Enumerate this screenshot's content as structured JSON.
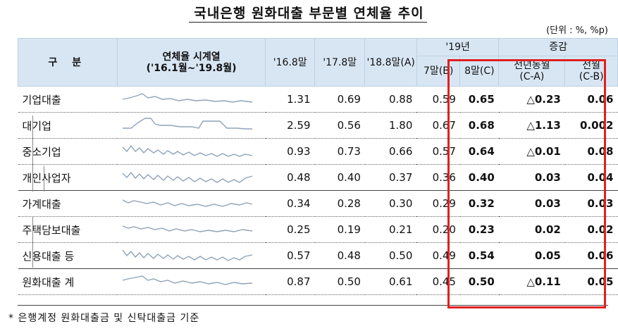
{
  "title": "국내은행 원화대출 부문별 연체율 추이",
  "unit": "(단위 : %, %p)",
  "headers": {
    "category": "구 분",
    "sparkline_line1": "연체율 시계열",
    "sparkline_line2": "('16.1월~'19.8월)",
    "y16": "'16.8말",
    "y17": "'17.8말",
    "y18": "'18.8말(A)",
    "y19": "'19년",
    "jul": "7말(B)",
    "aug": "8말(C)",
    "change": "증감",
    "yoy_line1": "전년동월",
    "yoy_line2": "(C-A)",
    "mom_line1": "전월",
    "mom_line2": "(C-B)"
  },
  "rows": [
    {
      "label": "기업대출",
      "y16": "1.31",
      "y17": "0.69",
      "y18": "0.88",
      "jul": "0.59",
      "aug": "0.65",
      "yoy": "△0.23",
      "mom": "0.06"
    },
    {
      "label": "대기업",
      "y16": "2.59",
      "y17": "0.56",
      "y18": "1.80",
      "jul": "0.67",
      "aug": "0.68",
      "yoy": "△1.13",
      "mom": "0.002"
    },
    {
      "label": "중소기업",
      "y16": "0.93",
      "y17": "0.73",
      "y18": "0.66",
      "jul": "0.57",
      "aug": "0.64",
      "yoy": "△0.01",
      "mom": "0.08"
    },
    {
      "label": "개인사업자",
      "y16": "0.48",
      "y17": "0.40",
      "y18": "0.37",
      "jul": "0.36",
      "aug": "0.40",
      "yoy": "0.03",
      "mom": "0.04"
    },
    {
      "label": "가계대출",
      "y16": "0.34",
      "y17": "0.28",
      "y18": "0.30",
      "jul": "0.29",
      "aug": "0.32",
      "yoy": "0.03",
      "mom": "0.03"
    },
    {
      "label": "주택담보대출",
      "y16": "0.25",
      "y17": "0.19",
      "y18": "0.21",
      "jul": "0.20",
      "aug": "0.23",
      "yoy": "0.02",
      "mom": "0.02"
    },
    {
      "label": "신용대출 등",
      "y16": "0.57",
      "y17": "0.48",
      "y18": "0.50",
      "jul": "0.49",
      "aug": "0.54",
      "yoy": "0.05",
      "mom": "0.06"
    },
    {
      "label": "원화대출 계",
      "y16": "0.87",
      "y17": "0.50",
      "y18": "0.61",
      "jul": "0.45",
      "aug": "0.50",
      "yoy": "△0.11",
      "mom": "0.05"
    }
  ],
  "footnote": "* 은행계정 원화대출금 및 신탁대출금 기준",
  "colors": {
    "header_bg": "#d8e6f3",
    "highlight_box": "#e02020",
    "sparkline": "#8fa3b8"
  }
}
